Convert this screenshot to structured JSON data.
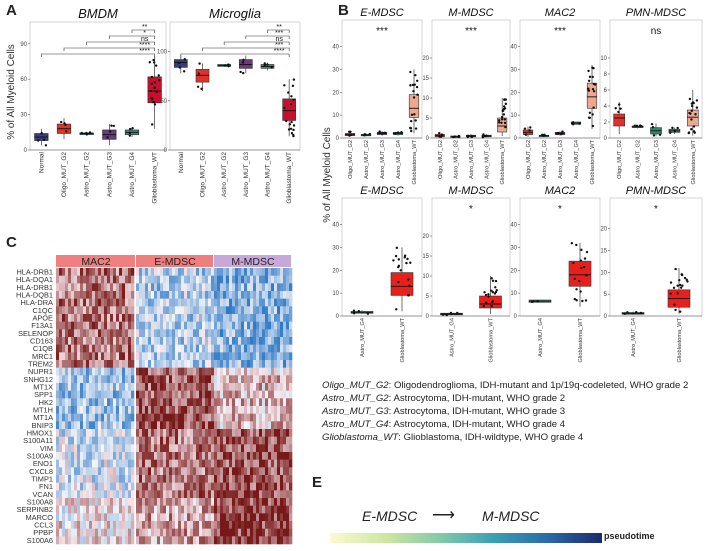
{
  "panel_letters": {
    "a": "A",
    "b": "B",
    "c": "C",
    "e": "E"
  },
  "colors": {
    "normal": "#3a3a7a",
    "oligo": "#e0322c",
    "astro_g2": "#1e9a8a",
    "astro_g3": "#6a3a7a",
    "astro_g4": "#3a8a7a",
    "gbm": "#c8102e",
    "emdsc_salmon": "#eea890",
    "pmn_green": "#2a8a6a",
    "mac2_bar": "#f08080",
    "emdsc_bar": "#ef7f7f",
    "mmdsc_bar": "#c8a8d8"
  },
  "chart_data": [
    {
      "type": "box",
      "id": "A_BMDM",
      "title": "BMDM",
      "ylabel": "%  of All Myeloid Cells",
      "ylim": [
        0,
        100
      ],
      "yticks": [
        0,
        30,
        60,
        90
      ],
      "categories": [
        "Normal",
        "Oligo_MUT_G2",
        "Astro_MUT_G2",
        "Astro_MUT_G3",
        "Astro_MUT_G4",
        "Glioblastoma_WT"
      ],
      "boxes": [
        {
          "q1": 8,
          "med": 11,
          "q3": 14,
          "lo": 4,
          "hi": 18,
          "color": "#3a3a7a"
        },
        {
          "q1": 14,
          "med": 18,
          "q3": 22,
          "lo": 9,
          "hi": 27,
          "color": "#e0322c"
        },
        {
          "q1": 13,
          "med": 14,
          "q3": 14.5,
          "lo": 13,
          "hi": 15,
          "color": "#1e9a8a"
        },
        {
          "q1": 9,
          "med": 13,
          "q3": 17,
          "lo": 4,
          "hi": 22,
          "color": "#6a3a7a"
        },
        {
          "q1": 13,
          "med": 15,
          "q3": 17,
          "lo": 11,
          "hi": 19,
          "color": "#3a8a7a"
        },
        {
          "q1": 40,
          "med": 50,
          "q3": 62,
          "lo": 18,
          "hi": 80,
          "color": "#c8102e"
        }
      ],
      "comparisons": [
        {
          "from": 0,
          "to": 5,
          "label": "****"
        },
        {
          "from": 1,
          "to": 5,
          "label": "****"
        },
        {
          "from": 2,
          "to": 5,
          "label": "ns"
        },
        {
          "from": 3,
          "to": 5,
          "label": "*"
        },
        {
          "from": 4,
          "to": 5,
          "label": "**"
        }
      ]
    },
    {
      "type": "box",
      "id": "A_Microglia",
      "title": "Microglia",
      "ylim": [
        0,
        120
      ],
      "yticks": [
        0,
        50,
        100
      ],
      "categories": [
        "Normal",
        "Oligo_MUT_G2",
        "Astro_MUT_G2",
        "Astro_MUT_G3",
        "Astro_MUT_G4",
        "Glioblastoma_WT"
      ],
      "boxes": [
        {
          "q1": 84,
          "med": 89,
          "q3": 92,
          "lo": 78,
          "hi": 96,
          "color": "#3a3a7a"
        },
        {
          "q1": 69,
          "med": 76,
          "q3": 82,
          "lo": 60,
          "hi": 88,
          "color": "#e0322c"
        },
        {
          "q1": 85,
          "med": 86,
          "q3": 87,
          "lo": 85,
          "hi": 87,
          "color": "#1e9a8a"
        },
        {
          "q1": 83,
          "med": 87,
          "q3": 92,
          "lo": 78,
          "hi": 96,
          "color": "#6a3a7a"
        },
        {
          "q1": 83,
          "med": 85,
          "q3": 87,
          "lo": 81,
          "hi": 89,
          "color": "#3a8a7a"
        },
        {
          "q1": 30,
          "med": 40,
          "q3": 52,
          "lo": 14,
          "hi": 72,
          "color": "#c8102e"
        }
      ],
      "comparisons": [
        {
          "from": 0,
          "to": 5,
          "label": "****"
        },
        {
          "from": 1,
          "to": 5,
          "label": "***"
        },
        {
          "from": 2,
          "to": 5,
          "label": "ns"
        },
        {
          "from": 3,
          "to": 5,
          "label": "***"
        },
        {
          "from": 4,
          "to": 5,
          "label": "**"
        }
      ]
    },
    {
      "type": "box",
      "id": "B_EMDSC_top",
      "title": "E-MDSC",
      "sig": "***",
      "ylim": [
        0,
        42
      ],
      "yticks": [
        0,
        10,
        20,
        30,
        40
      ],
      "categories": [
        "Oligo_MUT_G2",
        "Astro_MUT_G2",
        "Astro_MUT_G3",
        "Astro_MUT_G4",
        "Glioblastoma_WT"
      ],
      "boxes": [
        {
          "q1": 1,
          "med": 1.5,
          "q3": 2,
          "lo": 0.5,
          "hi": 3,
          "color": "#e0322c"
        },
        {
          "q1": 1,
          "med": 1.3,
          "q3": 1.6,
          "lo": 1,
          "hi": 1.8,
          "color": "#1e9a8a"
        },
        {
          "q1": 1.5,
          "med": 2,
          "q3": 2.5,
          "lo": 1,
          "hi": 3,
          "color": "#6a3a7a"
        },
        {
          "q1": 1.5,
          "med": 2,
          "q3": 2.5,
          "lo": 1,
          "hi": 3,
          "color": "#3a8a7a"
        },
        {
          "q1": 9,
          "med": 13,
          "q3": 19,
          "lo": 2,
          "hi": 30,
          "color": "#eea890"
        }
      ]
    },
    {
      "type": "box",
      "id": "B_MMDSC_top",
      "title": "M-MDSC",
      "sig": "***",
      "ylim": [
        0,
        24
      ],
      "yticks": [
        0,
        5,
        10,
        15,
        20
      ],
      "categories": [
        "Oligo_MUT_G2",
        "Astro_MUT_G2",
        "Astro_MUT_G3",
        "Astro_MUT_G4",
        "Glioblastoma_WT"
      ],
      "boxes": [
        {
          "q1": 0.3,
          "med": 0.6,
          "q3": 0.9,
          "lo": 0.1,
          "hi": 1.2,
          "color": "#e0322c"
        },
        {
          "q1": 0.3,
          "med": 0.4,
          "q3": 0.5,
          "lo": 0.2,
          "hi": 0.6,
          "color": "#1e9a8a"
        },
        {
          "q1": 0.3,
          "med": 0.5,
          "q3": 0.7,
          "lo": 0.1,
          "hi": 1,
          "color": "#6a3a7a"
        },
        {
          "q1": 0.3,
          "med": 0.5,
          "q3": 0.7,
          "lo": 0.2,
          "hi": 0.9,
          "color": "#3a8a7a"
        },
        {
          "q1": 1.5,
          "med": 3,
          "q3": 5,
          "lo": 0.5,
          "hi": 10,
          "color": "#eea890"
        }
      ]
    },
    {
      "type": "box",
      "id": "B_MAC2_top",
      "title": "MAC2",
      "sig": "***",
      "ylim": [
        0,
        42
      ],
      "yticks": [
        0,
        10,
        20,
        30,
        40
      ],
      "categories": [
        "Oligo_MUT_G2",
        "Astro_MUT_G2",
        "Astro_MUT_G3",
        "Astro_MUT_G4",
        "Glioblastoma_WT"
      ],
      "boxes": [
        {
          "q1": 1.5,
          "med": 2.5,
          "q3": 3.5,
          "lo": 0.5,
          "hi": 5,
          "color": "#e0322c"
        },
        {
          "q1": 0.8,
          "med": 1,
          "q3": 1.2,
          "lo": 0.5,
          "hi": 1.5,
          "color": "#1e9a8a"
        },
        {
          "q1": 1.5,
          "med": 2,
          "q3": 2.5,
          "lo": 1,
          "hi": 3,
          "color": "#6a3a7a"
        },
        {
          "q1": 6,
          "med": 6.5,
          "q3": 7,
          "lo": 6,
          "hi": 7,
          "color": "#3a8a7a"
        },
        {
          "q1": 13,
          "med": 18,
          "q3": 24,
          "lo": 4,
          "hi": 32,
          "color": "#eea890"
        }
      ]
    },
    {
      "type": "box",
      "id": "B_PMN_top",
      "title": "PMN-MDSC",
      "sig": "ns",
      "ylim": [
        0,
        12
      ],
      "yticks": [
        0,
        2,
        4,
        6,
        8,
        10
      ],
      "categories": [
        "Oligo_MUT_G2",
        "Astro_MUT_G2",
        "Astro_MUT_G3",
        "Astro_MUT_G4",
        "Glioblastoma_WT"
      ],
      "boxes": [
        {
          "q1": 1.5,
          "med": 2.5,
          "q3": 3,
          "lo": 0.5,
          "hi": 4.5,
          "color": "#e0322c"
        },
        {
          "q1": 1.3,
          "med": 1.4,
          "q3": 1.5,
          "lo": 1.2,
          "hi": 1.6,
          "color": "#1e9a8a"
        },
        {
          "q1": 0.5,
          "med": 0.9,
          "q3": 1.3,
          "lo": 0.2,
          "hi": 1.8,
          "color": "#2a8a6a"
        },
        {
          "q1": 0.7,
          "med": 0.9,
          "q3": 1.1,
          "lo": 0.5,
          "hi": 1.3,
          "color": "#3a8a7a"
        },
        {
          "q1": 1.5,
          "med": 2.6,
          "q3": 3.5,
          "lo": 0.3,
          "hi": 6,
          "color": "#eea890"
        }
      ]
    },
    {
      "type": "box",
      "id": "B_EMDSC_bot",
      "title": "E-MDSC",
      "sig": "",
      "ylim": [
        0,
        42
      ],
      "yticks": [
        0,
        10,
        20,
        30,
        40
      ],
      "categories": [
        "Astro_MUT_G4",
        "Glioblastoma_WT"
      ],
      "boxes": [
        {
          "q1": 1.2,
          "med": 1.6,
          "q3": 2,
          "lo": 1,
          "hi": 2.5,
          "color": "#3a8a7a"
        },
        {
          "q1": 9,
          "med": 13,
          "q3": 19,
          "lo": 2,
          "hi": 30,
          "color": "#e8201c"
        }
      ]
    },
    {
      "type": "box",
      "id": "B_MMDSC_bot",
      "title": "M-MDSC",
      "sig": "*",
      "ylim": [
        0,
        24
      ],
      "yticks": [
        0,
        5,
        10,
        15,
        20
      ],
      "categories": [
        "Astro_MUT_G4",
        "Glioblastoma_WT"
      ],
      "boxes": [
        {
          "q1": 0.3,
          "med": 0.5,
          "q3": 0.7,
          "lo": 0.2,
          "hi": 0.9,
          "color": "#3a8a7a"
        },
        {
          "q1": 2,
          "med": 3,
          "q3": 5,
          "lo": 0.5,
          "hi": 10,
          "color": "#e8201c"
        }
      ]
    },
    {
      "type": "box",
      "id": "B_MAC2_bot",
      "title": "MAC2",
      "sig": "*",
      "ylim": [
        0,
        42
      ],
      "yticks": [
        0,
        10,
        20,
        30,
        40
      ],
      "categories": [
        "Astro_MUT_G4",
        "Glioblastoma_WT"
      ],
      "boxes": [
        {
          "q1": 6,
          "med": 6.5,
          "q3": 7,
          "lo": 6,
          "hi": 7,
          "color": "#3a8a7a"
        },
        {
          "q1": 13,
          "med": 18,
          "q3": 24,
          "lo": 4,
          "hi": 32,
          "color": "#e8201c"
        }
      ]
    },
    {
      "type": "box",
      "id": "B_PMN_bot",
      "title": "PMN-MDSC",
      "sig": "*",
      "ylim": [
        0,
        22
      ],
      "yticks": [
        0,
        5,
        10,
        15,
        20
      ],
      "categories": [
        "Astro_MUT_G4",
        "Glioblastoma_WT"
      ],
      "boxes": [
        {
          "q1": 0.4,
          "med": 0.6,
          "q3": 0.8,
          "lo": 0.3,
          "hi": 1,
          "color": "#3a8a7a"
        },
        {
          "q1": 2,
          "med": 4,
          "q3": 6,
          "lo": 0.5,
          "hi": 11,
          "color": "#e8201c"
        }
      ]
    },
    {
      "type": "heatmap",
      "id": "C",
      "clusters": [
        "MAC2",
        "E-MDSC",
        "M-MDSC"
      ],
      "genes": [
        "HLA-DRB1",
        "HLA-DQA1",
        "HLA-DRB1",
        "HLA-DQB1",
        "HLA-DRA",
        "C1QC",
        "APOE",
        "F13A1",
        "SELENOP",
        "CD163",
        "C1QB",
        "MRC1",
        "TREM2",
        "NUPR1",
        "SNHG12",
        "MT1X",
        "SPP1",
        "HK2",
        "MT1H",
        "MT1A",
        "BNIP3",
        "HMOX1",
        "S100A11",
        "VIM",
        "S100A9",
        "ENO1",
        "CXCL8",
        "TIMP1",
        "FN1",
        "VCAN",
        "S100A8",
        "SERPINB2",
        "MARCO",
        "CCL3",
        "PPBP",
        "S100A6"
      ]
    }
  ],
  "shared_ylabel_b": "% of All Myeloid Cells",
  "legend_lines": [
    {
      "abbr": "Oligo_MUT_G2",
      "text": ": Oligodendroglioma, IDH-mutant and 1p/19q-codeleted, WHO grade 2"
    },
    {
      "abbr": "Astro_MUT_G2",
      "text": ": Astrocytoma, IDH-mutant, WHO grade 2"
    },
    {
      "abbr": "Astro_MUT_G3",
      "text": ": Astrocytoma, IDH-mutant, WHO grade 3"
    },
    {
      "abbr": "Astro_MUT_G4",
      "text": ": Astrocytoma, IDH-mutant, WHO grade 4"
    },
    {
      "abbr": "Glioblastoma_WT",
      "text": ": Glioblastoma, IDH-wildtype, WHO grade 4"
    }
  ],
  "panel_e": {
    "from": "E-MDSC",
    "arrow": "⟶",
    "to": "M-MDSC",
    "bar_label": "pseudotime"
  }
}
